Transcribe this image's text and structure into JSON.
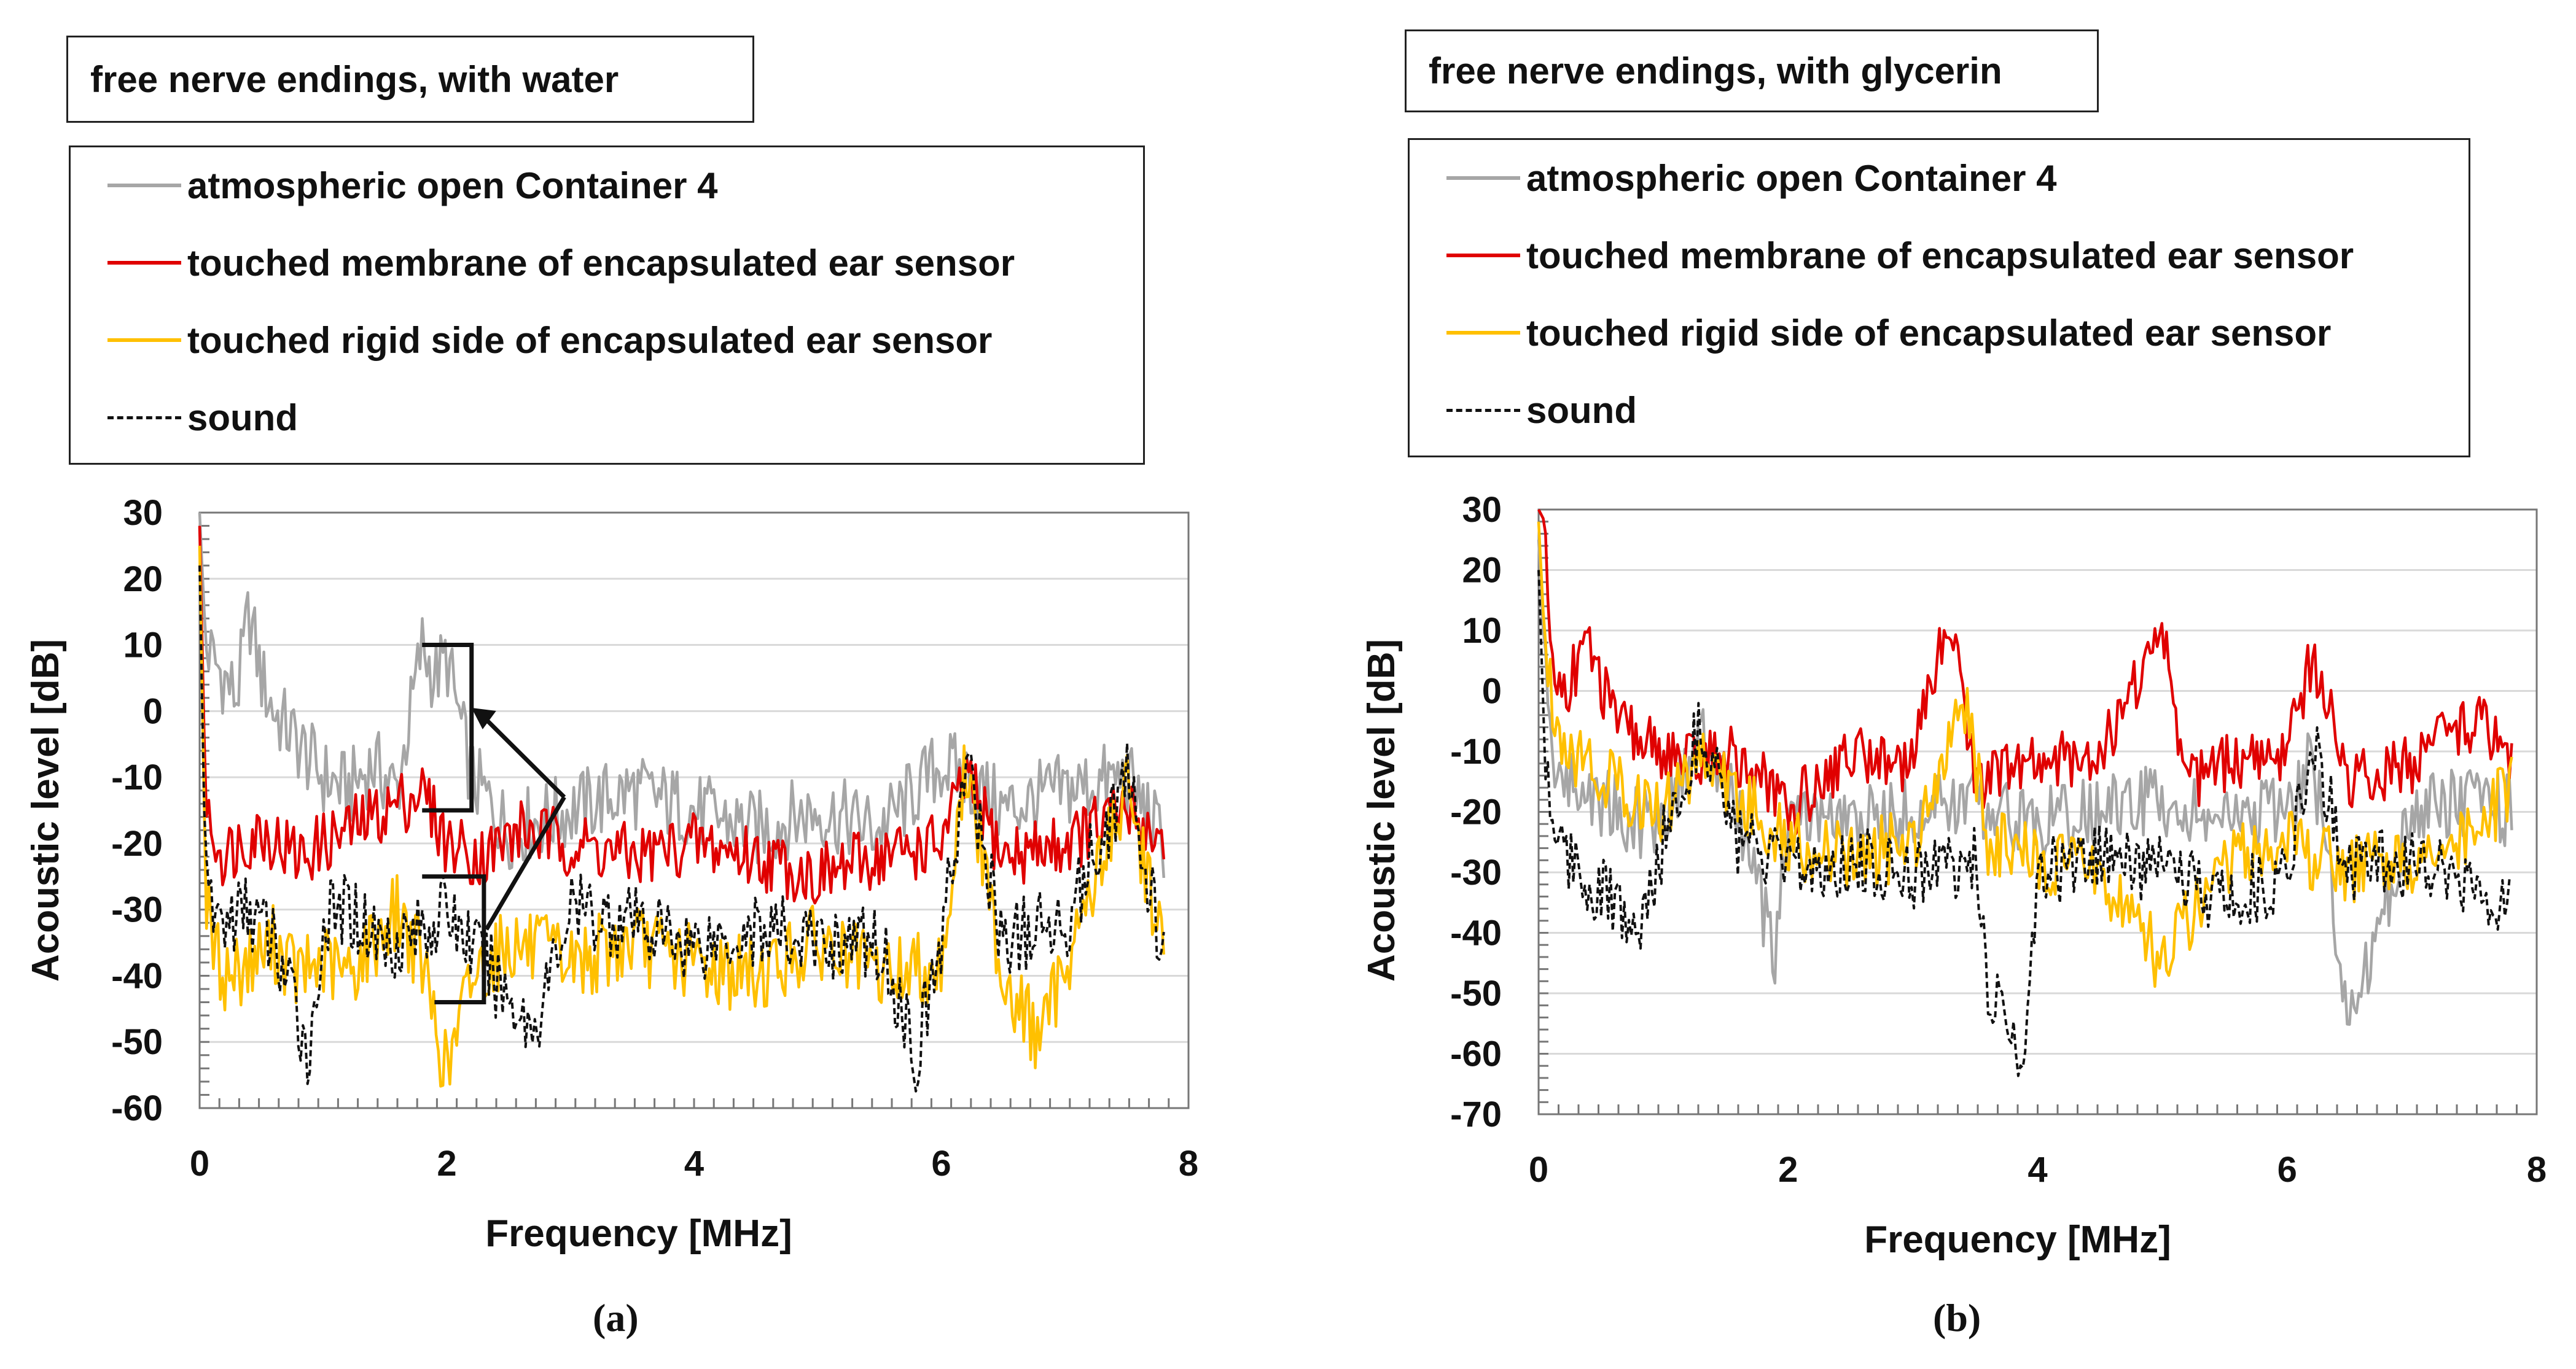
{
  "chart_data": [
    {
      "type": "line",
      "panel": "a",
      "caption": "(a)",
      "title": "free nerve endings, with water",
      "xlabel": "Frequency   [MHz]",
      "ylabel": "Acoustic level   [dB]",
      "xlim": [
        0,
        8
      ],
      "ylim": [
        -60,
        30
      ],
      "xticks": [
        0,
        2,
        4,
        6,
        8
      ],
      "yticks": [
        -60,
        -50,
        -40,
        -30,
        -20,
        -10,
        0,
        10,
        20,
        30
      ],
      "grid": "horizontal",
      "legend": "above plot",
      "series": [
        {
          "name": "atmospheric open Container 4",
          "color": "#a6a6a6",
          "dash": "solid",
          "x": [
            0,
            0.05,
            0.1,
            0.2,
            0.3,
            0.4,
            0.5,
            0.6,
            0.8,
            1.0,
            1.2,
            1.4,
            1.6,
            1.8,
            1.9,
            2.0,
            2.2,
            2.5,
            3.0,
            3.5,
            4.0,
            4.5,
            5.0,
            5.5,
            6.0,
            6.2,
            6.5,
            7.0,
            7.5,
            7.8
          ],
          "y": [
            30,
            10,
            8,
            5,
            2,
            15,
            5,
            0,
            -5,
            -10,
            -12,
            -8,
            -12,
            10,
            5,
            8,
            -10,
            -18,
            -15,
            -12,
            -15,
            -18,
            -15,
            -18,
            -8,
            -10,
            -15,
            -12,
            -10,
            -20
          ]
        },
        {
          "name": "touched membrane of encapsulated ear sensor",
          "color": "#e00000",
          "dash": "solid",
          "x": [
            0,
            0.05,
            0.1,
            0.2,
            0.3,
            0.5,
            0.8,
            1.0,
            1.2,
            1.5,
            1.8,
            2.0,
            2.3,
            2.6,
            3.0,
            3.5,
            4.0,
            4.5,
            5.0,
            5.5,
            6.0,
            6.2,
            6.5,
            7.0,
            7.5,
            7.8
          ],
          "y": [
            28,
            -15,
            -18,
            -22,
            -20,
            -18,
            -22,
            -20,
            -18,
            -15,
            -12,
            -20,
            -22,
            -18,
            -20,
            -22,
            -20,
            -22,
            -25,
            -22,
            -20,
            -10,
            -22,
            -20,
            -15,
            -20
          ]
        },
        {
          "name": "touched rigid side of encapsulated ear sensor",
          "color": "#ffc000",
          "dash": "solid",
          "x": [
            0,
            0.05,
            0.1,
            0.2,
            0.4,
            0.6,
            0.8,
            1.0,
            1.2,
            1.4,
            1.6,
            1.8,
            2.0,
            2.2,
            2.5,
            3.0,
            3.5,
            4.0,
            4.5,
            5.0,
            5.5,
            6.0,
            6.2,
            6.5,
            6.8,
            7.0,
            7.5,
            7.8
          ],
          "y": [
            25,
            -28,
            -35,
            -40,
            -38,
            -35,
            -40,
            -38,
            -40,
            -35,
            -30,
            -38,
            -55,
            -40,
            -35,
            -38,
            -35,
            -38,
            -40,
            -35,
            -40,
            -38,
            -8,
            -40,
            -50,
            -38,
            -12,
            -35
          ]
        },
        {
          "name": "sound",
          "color": "#111111",
          "dash": "dashed",
          "x": [
            0,
            0.05,
            0.1,
            0.2,
            0.4,
            0.6,
            0.9,
            1.0,
            1.2,
            1.5,
            1.8,
            2.0,
            2.3,
            2.7,
            3.0,
            3.5,
            4.0,
            4.5,
            5.0,
            5.5,
            5.8,
            6.0,
            6.2,
            6.5,
            7.0,
            7.5,
            7.8
          ],
          "y": [
            22,
            -28,
            -30,
            -32,
            -30,
            -35,
            -52,
            -32,
            -30,
            -35,
            -33,
            -30,
            -38,
            -48,
            -30,
            -32,
            -35,
            -33,
            -35,
            -35,
            -52,
            -35,
            -8,
            -35,
            -32,
            -10,
            -38
          ]
        }
      ]
    },
    {
      "type": "line",
      "panel": "b",
      "caption": "(b)",
      "title": "free nerve endings, with glycerin",
      "xlabel": "Frequency   [MHz]",
      "ylabel": "Acoustic level   [dB]",
      "xlim": [
        0,
        8
      ],
      "ylim": [
        -70,
        30
      ],
      "xticks": [
        0,
        2,
        4,
        6,
        8
      ],
      "yticks": [
        -70,
        -60,
        -50,
        -40,
        -30,
        -20,
        -10,
        0,
        10,
        20,
        30
      ],
      "grid": "horizontal",
      "legend": "above plot",
      "series": [
        {
          "name": "atmospheric open Container 4",
          "color": "#a6a6a6",
          "dash": "solid",
          "x": [
            0,
            0.05,
            0.1,
            0.2,
            0.5,
            0.8,
            1.0,
            1.3,
            1.6,
            1.9,
            2.0,
            2.5,
            3.0,
            3.5,
            4.0,
            4.5,
            5.0,
            5.5,
            6.0,
            6.2,
            6.5,
            7.0,
            7.5,
            7.8
          ],
          "y": [
            25,
            5,
            -10,
            -15,
            -18,
            -22,
            -20,
            -8,
            -20,
            -45,
            -20,
            -22,
            -20,
            -18,
            -22,
            -20,
            -18,
            -22,
            -20,
            -10,
            -55,
            -20,
            -18,
            -20
          ]
        },
        {
          "name": "touched membrane of encapsulated ear sensor",
          "color": "#e00000",
          "dash": "solid",
          "x": [
            0,
            0.05,
            0.1,
            0.2,
            0.4,
            0.6,
            0.8,
            1.0,
            1.2,
            1.5,
            1.8,
            2.0,
            2.5,
            3.0,
            3.3,
            3.5,
            4.0,
            4.5,
            5.0,
            5.2,
            5.5,
            6.0,
            6.2,
            6.5,
            7.0,
            7.5,
            7.8
          ],
          "y": [
            30,
            28,
            5,
            0,
            8,
            -5,
            -8,
            -10,
            -12,
            -10,
            -15,
            -20,
            -10,
            -12,
            14,
            -15,
            -12,
            -10,
            10,
            -15,
            -12,
            -10,
            6,
            -15,
            -12,
            -5,
            -10
          ]
        },
        {
          "name": "touched rigid side of encapsulated ear sensor",
          "color": "#ffc000",
          "dash": "solid",
          "x": [
            0,
            0.05,
            0.1,
            0.2,
            0.4,
            0.6,
            0.8,
            1.0,
            1.3,
            1.6,
            2.0,
            2.5,
            3.0,
            3.4,
            3.6,
            4.0,
            4.5,
            5.0,
            5.5,
            6.0,
            6.5,
            7.0,
            7.5,
            7.8
          ],
          "y": [
            28,
            8,
            0,
            -8,
            -12,
            -15,
            -18,
            -20,
            -10,
            -18,
            -25,
            -28,
            -25,
            0,
            -25,
            -28,
            -30,
            -45,
            -28,
            -25,
            -30,
            -28,
            -25,
            -15
          ]
        },
        {
          "name": "sound",
          "color": "#111111",
          "dash": "dashed",
          "x": [
            0,
            0.05,
            0.1,
            0.3,
            0.6,
            0.8,
            1.0,
            1.3,
            1.6,
            2.0,
            2.5,
            3.0,
            3.5,
            3.6,
            3.9,
            4.0,
            4.5,
            5.0,
            5.5,
            6.0,
            6.2,
            6.5,
            7.0,
            7.5,
            7.8
          ],
          "y": [
            20,
            -10,
            -20,
            -30,
            -35,
            -42,
            -25,
            -5,
            -25,
            -30,
            -28,
            -30,
            -28,
            -50,
            -60,
            -30,
            -28,
            -30,
            -35,
            -30,
            -8,
            -30,
            -28,
            -32,
            -35
          ]
        }
      ]
    }
  ]
}
